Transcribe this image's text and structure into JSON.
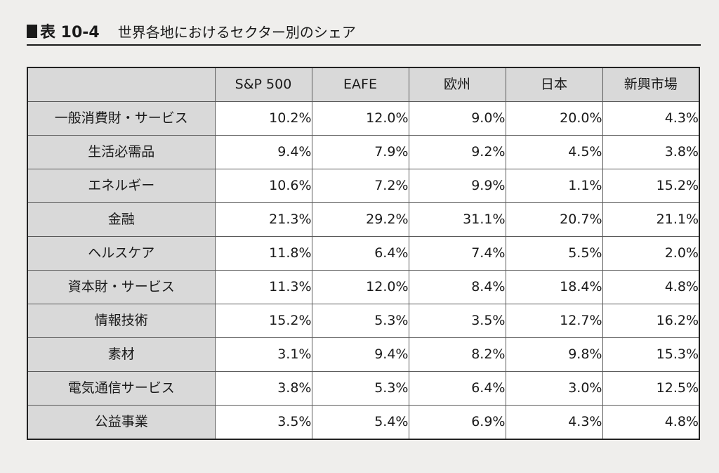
{
  "heading": {
    "label": "表 10-4",
    "title": "世界各地におけるセクター別のシェア"
  },
  "table": {
    "columns": [
      "S&P 500",
      "EAFE",
      "欧州",
      "日本",
      "新興市場"
    ],
    "rows": [
      {
        "sector": "一般消費財・サービス",
        "values": [
          "10.2%",
          "12.0%",
          "9.0%",
          "20.0%",
          "4.3%"
        ]
      },
      {
        "sector": "生活必需品",
        "values": [
          "9.4%",
          "7.9%",
          "9.2%",
          "4.5%",
          "3.8%"
        ]
      },
      {
        "sector": "エネルギー",
        "values": [
          "10.6%",
          "7.2%",
          "9.9%",
          "1.1%",
          "15.2%"
        ]
      },
      {
        "sector": "金融",
        "values": [
          "21.3%",
          "29.2%",
          "31.1%",
          "20.7%",
          "21.1%"
        ]
      },
      {
        "sector": "ヘルスケア",
        "values": [
          "11.8%",
          "6.4%",
          "7.4%",
          "5.5%",
          "2.0%"
        ]
      },
      {
        "sector": "資本財・サービス",
        "values": [
          "11.3%",
          "12.0%",
          "8.4%",
          "18.4%",
          "4.8%"
        ]
      },
      {
        "sector": "情報技術",
        "values": [
          "15.2%",
          "5.3%",
          "3.5%",
          "12.7%",
          "16.2%"
        ]
      },
      {
        "sector": "素材",
        "values": [
          "3.1%",
          "9.4%",
          "8.2%",
          "9.8%",
          "15.3%"
        ]
      },
      {
        "sector": "電気通信サービス",
        "values": [
          "3.8%",
          "5.3%",
          "6.4%",
          "3.0%",
          "12.5%"
        ]
      },
      {
        "sector": "公益事業",
        "values": [
          "3.5%",
          "5.4%",
          "6.9%",
          "4.3%",
          "4.8%"
        ]
      }
    ]
  }
}
